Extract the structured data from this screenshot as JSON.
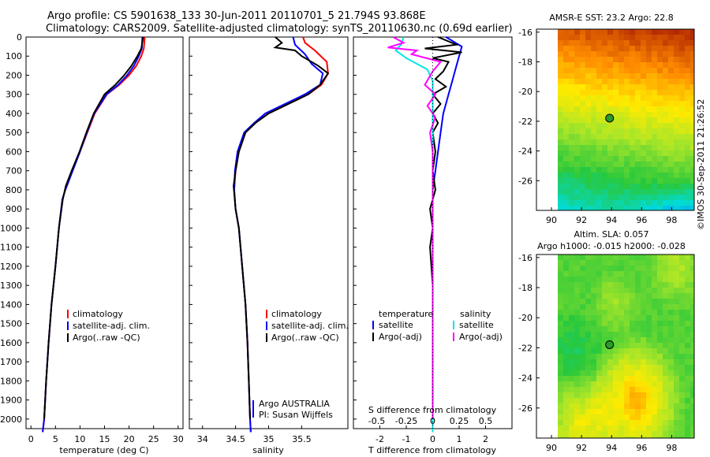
{
  "header": {
    "line1": "Argo profile: CS 5901638_133 30-Jun-2011 20110701_5 21.794S 93.868E",
    "line2": "Climatology: CARS2009. Satellite-adjusted climatology: synTS_20110630.nc (0.69d earlier)"
  },
  "credit": "©IMOS 30-Sep-2011 21:26:52",
  "colors": {
    "climatology": "#ff0000",
    "satellite": "#0000ff",
    "argo": "#000000",
    "satellite_s": "#00e5e5",
    "argo_s": "#ff00ff"
  },
  "chart_data": [
    {
      "type": "line",
      "xlabel": "temperature (deg C)",
      "xticks": [
        0,
        5,
        10,
        15,
        20,
        25,
        30
      ],
      "xlim": [
        -1,
        31
      ],
      "ylim": [
        0,
        2050
      ],
      "yticks": [
        0,
        100,
        200,
        300,
        400,
        500,
        600,
        700,
        800,
        900,
        1000,
        1100,
        1200,
        1300,
        1400,
        1500,
        1600,
        1700,
        1800,
        1900,
        2000
      ],
      "y_inverted": true,
      "legend": [
        "climatology",
        "satellite-adj. clim.",
        "Argo(..raw -QC)"
      ],
      "series": [
        {
          "name": "climatology",
          "color": "red",
          "points": [
            [
              23.2,
              0
            ],
            [
              23.0,
              60
            ],
            [
              22.5,
              100
            ],
            [
              21.5,
              150
            ],
            [
              20.0,
              200
            ],
            [
              18.0,
              250
            ],
            [
              15.5,
              300
            ],
            [
              13.0,
              400
            ],
            [
              11.5,
              500
            ],
            [
              10.0,
              600
            ],
            [
              8.5,
              700
            ],
            [
              7.0,
              800
            ],
            [
              6.4,
              850
            ],
            [
              5.7,
              1000
            ],
            [
              5.0,
              1200
            ],
            [
              4.2,
              1400
            ],
            [
              3.6,
              1600
            ],
            [
              3.1,
              1800
            ],
            [
              2.7,
              2000
            ],
            [
              2.4,
              2080
            ]
          ]
        },
        {
          "name": "satellite-adj. clim.",
          "color": "blue",
          "points": [
            [
              22.7,
              0
            ],
            [
              22.6,
              60
            ],
            [
              22.0,
              100
            ],
            [
              21.0,
              150
            ],
            [
              19.6,
              200
            ],
            [
              17.8,
              250
            ],
            [
              15.4,
              300
            ],
            [
              12.9,
              400
            ],
            [
              11.4,
              500
            ],
            [
              10.0,
              600
            ],
            [
              8.5,
              700
            ],
            [
              7.0,
              800
            ],
            [
              6.4,
              850
            ],
            [
              5.7,
              1000
            ],
            [
              5.0,
              1200
            ],
            [
              4.2,
              1400
            ],
            [
              3.6,
              1600
            ],
            [
              3.1,
              1800
            ],
            [
              2.7,
              2000
            ],
            [
              2.4,
              2080
            ]
          ]
        },
        {
          "name": "Argo(..raw -QC)",
          "color": "black",
          "points": [
            [
              22.9,
              0
            ],
            [
              22.5,
              60
            ],
            [
              21.7,
              100
            ],
            [
              20.5,
              150
            ],
            [
              19.0,
              200
            ],
            [
              17.2,
              250
            ],
            [
              15.0,
              300
            ],
            [
              12.8,
              400
            ],
            [
              11.3,
              500
            ],
            [
              9.9,
              600
            ],
            [
              8.3,
              700
            ],
            [
              7.1,
              780
            ],
            [
              6.5,
              850
            ],
            [
              5.7,
              1000
            ],
            [
              5.0,
              1200
            ],
            [
              4.2,
              1400
            ],
            [
              3.6,
              1600
            ],
            [
              3.1,
              1800
            ],
            [
              2.7,
              2000
            ]
          ]
        }
      ]
    },
    {
      "type": "line",
      "xlabel": "salinity",
      "xticks": [
        34,
        34.5,
        35,
        35.5
      ],
      "xlim": [
        33.8,
        36.2
      ],
      "ylim": [
        0,
        2050
      ],
      "y_inverted": true,
      "legend": [
        "climatology",
        "satellite-adj. clim.",
        "Argo(..raw -QC)"
      ],
      "annotation": [
        "Argo AUSTRALIA",
        "PI: Susan Wijffels"
      ],
      "series": [
        {
          "name": "climatology",
          "color": "red",
          "points": [
            [
              35.52,
              0
            ],
            [
              35.55,
              30
            ],
            [
              35.7,
              70
            ],
            [
              35.88,
              130
            ],
            [
              35.9,
              190
            ],
            [
              35.8,
              250
            ],
            [
              35.6,
              300
            ],
            [
              35.3,
              350
            ],
            [
              35.0,
              400
            ],
            [
              34.8,
              450
            ],
            [
              34.65,
              500
            ],
            [
              34.55,
              600
            ],
            [
              34.5,
              700
            ],
            [
              34.48,
              800
            ],
            [
              34.5,
              900
            ],
            [
              34.55,
              1000
            ],
            [
              34.6,
              1200
            ],
            [
              34.65,
              1400
            ],
            [
              34.68,
              1600
            ],
            [
              34.7,
              1800
            ],
            [
              34.72,
              2000
            ],
            [
              34.73,
              2080
            ]
          ]
        },
        {
          "name": "satellite-adj. clim.",
          "color": "blue",
          "points": [
            [
              35.37,
              0
            ],
            [
              35.4,
              40
            ],
            [
              35.55,
              90
            ],
            [
              35.65,
              140
            ],
            [
              35.82,
              190
            ],
            [
              35.78,
              250
            ],
            [
              35.55,
              300
            ],
            [
              35.25,
              350
            ],
            [
              34.95,
              400
            ],
            [
              34.78,
              450
            ],
            [
              34.63,
              500
            ],
            [
              34.53,
              600
            ],
            [
              34.49,
              700
            ],
            [
              34.48,
              800
            ],
            [
              34.5,
              900
            ],
            [
              34.55,
              1000
            ],
            [
              34.6,
              1200
            ],
            [
              34.65,
              1400
            ],
            [
              34.68,
              1600
            ],
            [
              34.7,
              1800
            ],
            [
              34.72,
              2000
            ],
            [
              34.73,
              2080
            ]
          ]
        },
        {
          "name": "Argo(..raw -QC)",
          "color": "black",
          "points": [
            [
              35.1,
              0
            ],
            [
              35.2,
              30
            ],
            [
              35.1,
              55
            ],
            [
              35.4,
              70
            ],
            [
              35.5,
              100
            ],
            [
              35.75,
              150
            ],
            [
              35.9,
              190
            ],
            [
              35.78,
              250
            ],
            [
              35.6,
              300
            ],
            [
              35.3,
              350
            ],
            [
              35.0,
              400
            ],
            [
              34.8,
              450
            ],
            [
              34.65,
              500
            ],
            [
              34.55,
              600
            ],
            [
              34.5,
              700
            ],
            [
              34.47,
              780
            ],
            [
              34.5,
              900
            ],
            [
              34.55,
              1000
            ],
            [
              34.6,
              1200
            ],
            [
              34.65,
              1400
            ],
            [
              34.68,
              1600
            ],
            [
              34.7,
              1800
            ],
            [
              34.72,
              2000
            ]
          ]
        }
      ]
    },
    {
      "type": "line",
      "xlabel": "T difference from climatology",
      "xlabel_top": "S difference from climatology",
      "xticks": [
        -2,
        -1,
        0,
        1,
        2
      ],
      "xticks_s": [
        "-0.5",
        "-0.25",
        "0",
        "0.25",
        "0.5"
      ],
      "xlim": [
        -3,
        3
      ],
      "ylim": [
        0,
        2050
      ],
      "y_inverted": true,
      "legend_t": {
        "title": "temperature",
        "items": [
          "satellite",
          "Argo(-adj)"
        ]
      },
      "legend_s": {
        "title": "salinity",
        "items": [
          "satellite",
          "Argo(-adj)"
        ]
      },
      "series": [
        {
          "name": "T satellite",
          "color": "blue",
          "points": [
            [
              0.5,
              0
            ],
            [
              1.1,
              50
            ],
            [
              1.0,
              100
            ],
            [
              0.9,
              150
            ],
            [
              0.8,
              200
            ],
            [
              0.6,
              300
            ],
            [
              0.4,
              400
            ],
            [
              0.3,
              500
            ],
            [
              0.2,
              600
            ],
            [
              0.1,
              700
            ],
            [
              0.0,
              800
            ],
            [
              0.0,
              1000
            ],
            [
              0.0,
              1200
            ],
            [
              0.0,
              1600
            ],
            [
              0.0,
              2000
            ],
            [
              0.0,
              2080
            ]
          ]
        },
        {
          "name": "T Argo(-adj)",
          "color": "black",
          "points": [
            [
              0.2,
              0
            ],
            [
              0.9,
              40
            ],
            [
              -0.3,
              60
            ],
            [
              1.1,
              80
            ],
            [
              0.0,
              110
            ],
            [
              0.6,
              130
            ],
            [
              0.4,
              180
            ],
            [
              0.1,
              220
            ],
            [
              0.5,
              260
            ],
            [
              0.0,
              300
            ],
            [
              0.3,
              350
            ],
            [
              0.0,
              400
            ],
            [
              0.2,
              450
            ],
            [
              0.0,
              500
            ],
            [
              0.1,
              600
            ],
            [
              0.0,
              700
            ],
            [
              0.1,
              800
            ],
            [
              -0.1,
              900
            ],
            [
              0.0,
              1000
            ],
            [
              -0.1,
              1100
            ],
            [
              0.0,
              1300
            ],
            [
              0.0,
              2000
            ]
          ]
        },
        {
          "name": "S satellite",
          "color": "cyan",
          "points": [
            [
              -1.1,
              0
            ],
            [
              -1.2,
              40
            ],
            [
              -1.4,
              70
            ],
            [
              -1.0,
              110
            ],
            [
              -0.2,
              170
            ],
            [
              0.0,
              230
            ],
            [
              0.0,
              300
            ],
            [
              0.0,
              400
            ],
            [
              0.0,
              600
            ],
            [
              0.0,
              800
            ],
            [
              0.0,
              1000
            ],
            [
              0.0,
              1400
            ],
            [
              0.0,
              2000
            ],
            [
              0.0,
              2080
            ]
          ]
        },
        {
          "name": "S Argo(-adj)",
          "color": "magenta",
          "points": [
            [
              -1.5,
              0
            ],
            [
              -1.1,
              30
            ],
            [
              -1.7,
              55
            ],
            [
              -0.6,
              70
            ],
            [
              -0.8,
              90
            ],
            [
              0.3,
              130
            ],
            [
              0.0,
              180
            ],
            [
              -0.3,
              250
            ],
            [
              0.1,
              300
            ],
            [
              -0.2,
              360
            ],
            [
              0.1,
              420
            ],
            [
              -0.1,
              500
            ],
            [
              0.0,
              600
            ],
            [
              0.0,
              700
            ],
            [
              0.0,
              800
            ],
            [
              0.0,
              1000
            ],
            [
              0.0,
              2000
            ]
          ]
        }
      ]
    },
    {
      "type": "heatmap",
      "title": "AMSR-E SST: 23.2  Argo: 22.8",
      "xticks": [
        90,
        92,
        94,
        96,
        98
      ],
      "yticks": [
        -16,
        -18,
        -20,
        -22,
        -24,
        -26
      ],
      "xlim": [
        89,
        99.5
      ],
      "ylim": [
        -28,
        -15.8
      ],
      "marker": {
        "lon": 93.868,
        "lat": -21.794
      }
    },
    {
      "type": "heatmap",
      "title_line1": "Altim. SLA: 0.057",
      "title_line2": "Argo h1000: -0.015 h2000: -0.028",
      "xticks": [
        90,
        92,
        94,
        96,
        98
      ],
      "yticks": [
        -16,
        -18,
        -20,
        -22,
        -24,
        -26
      ],
      "xlim": [
        89,
        99.5
      ],
      "ylim": [
        -28,
        -15.8
      ],
      "marker": {
        "lon": 93.868,
        "lat": -21.794
      }
    }
  ]
}
